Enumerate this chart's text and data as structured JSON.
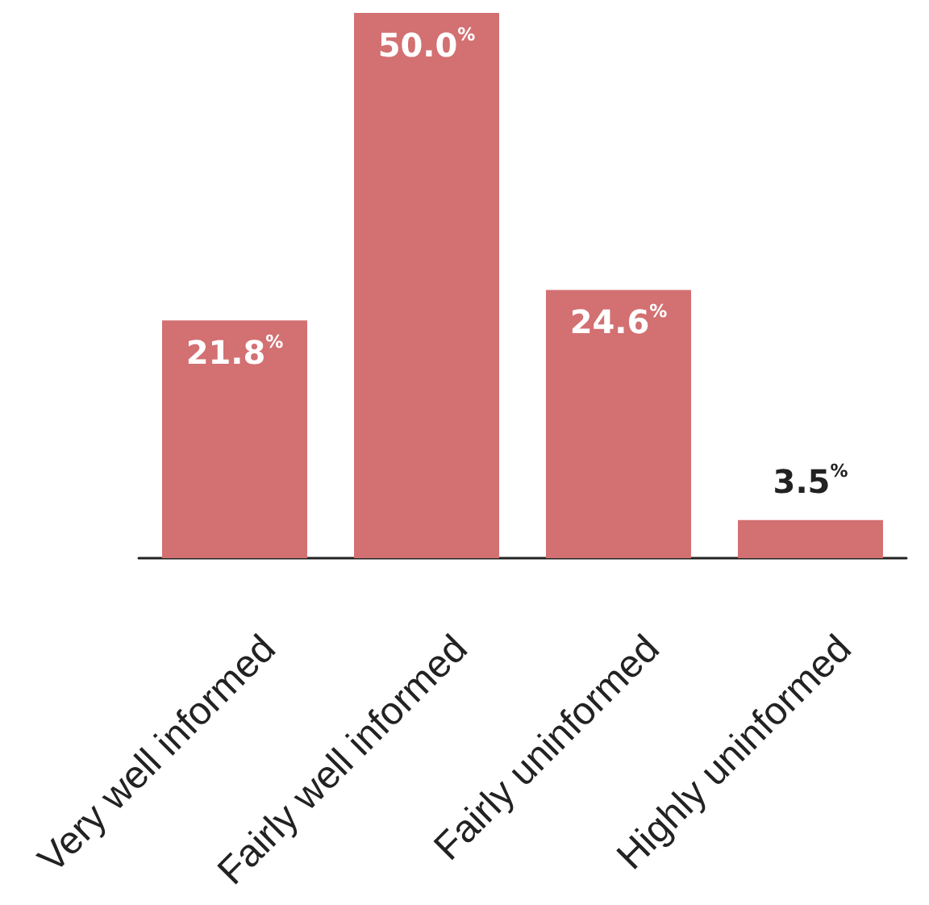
{
  "chart_data": {
    "type": "bar",
    "categories": [
      "Very well informed",
      "Fairly well informed",
      "Fairly uninformed",
      "Highly uninformed"
    ],
    "values": [
      21.8,
      50.0,
      24.6,
      3.5
    ],
    "color": "#d37072",
    "value_labels": [
      "21.8$^{%}$",
      "50.0$^{%}$",
      "24.6$^{%}$",
      "3.5$^{%}$"
    ]
  }
}
